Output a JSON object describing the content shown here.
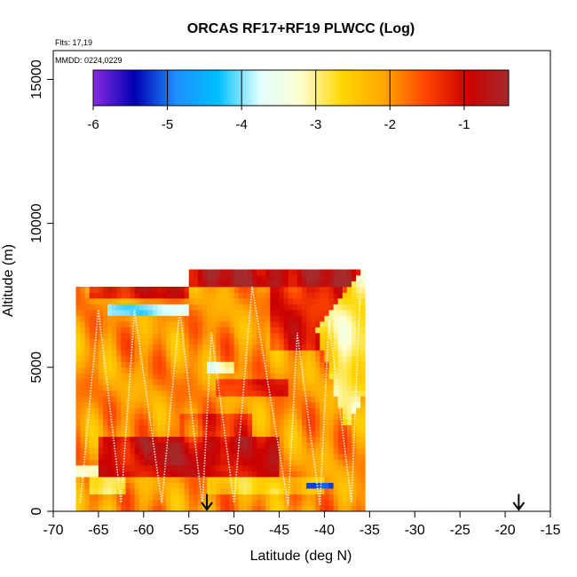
{
  "chart_data": {
    "type": "heatmap",
    "title": "ORCAS RF17+RF19 PLWCC (Log)",
    "annotations": [
      "Flts: 17,19",
      "MMDD: 0224,0229"
    ],
    "xlabel": "Latitude (deg N)",
    "ylabel": "Altitude (m)",
    "xlim": [
      -70,
      -15
    ],
    "ylim": [
      0,
      16000
    ],
    "xticks": [
      "-70",
      "-65",
      "-60",
      "-55",
      "-50",
      "-45",
      "-40",
      "-35",
      "-30",
      "-25",
      "-20",
      "-15"
    ],
    "yticks": [
      "0",
      "5000",
      "10000",
      "15000"
    ],
    "colorbar": {
      "range": [
        -6,
        -0.4
      ],
      "ticks": [
        "-6",
        "-5",
        "-4",
        "-3",
        "-2",
        "-1"
      ],
      "colors": [
        "#8a2be2",
        "#0000b0",
        "#1e90ff",
        "#00bfff",
        "#e0ffff",
        "#ffffd0",
        "#ffd700",
        "#ffa500",
        "#ff4500",
        "#cc0000",
        "#a52a2a"
      ]
    },
    "grid": false,
    "cell": {
      "dlat": 0.5,
      "dalt": 200
    },
    "layers": [
      {
        "lat": [
          -67.5,
          -35.5
        ],
        "alt": [
          0,
          7800
        ],
        "value": -2.0
      },
      {
        "lat": [
          -53.0,
          -40.0
        ],
        "alt": [
          600,
          1200
        ],
        "value": -2.5
      },
      {
        "lat": [
          -65.0,
          -45.0
        ],
        "alt": [
          1200,
          2600
        ],
        "value": -1.0
      },
      {
        "lat": [
          -60.0,
          -50.0
        ],
        "alt": [
          1600,
          2400
        ],
        "value": -0.8
      },
      {
        "lat": [
          -56.0,
          -48.0
        ],
        "alt": [
          2600,
          3400
        ],
        "value": -1.5
      },
      {
        "lat": [
          -68.0,
          -65.0
        ],
        "alt": [
          1200,
          1600
        ],
        "value": -3.4
      },
      {
        "lat": [
          -66.0,
          -62.0
        ],
        "alt": [
          600,
          1200
        ],
        "value": -3.0
      },
      {
        "lat": [
          -53.0,
          -50.0
        ],
        "alt": [
          4800,
          5200
        ],
        "value": -3.3
      },
      {
        "lat": [
          -64.0,
          -55.0
        ],
        "alt": [
          6800,
          7200
        ],
        "value": -3.9
      },
      {
        "lat": [
          -42.0,
          -39.0
        ],
        "alt": [
          800,
          1000
        ],
        "value": -5.2
      },
      {
        "lat": [
          -52.0,
          -44.0
        ],
        "alt": [
          4000,
          4600
        ],
        "value": -1.3
      },
      {
        "lat": [
          -55.0,
          -35.5
        ],
        "alt": [
          7800,
          8400
        ],
        "value": -0.7
      },
      {
        "lat": [
          -46.0,
          -38.0
        ],
        "alt": [
          5600,
          7800
        ],
        "value": -1.2
      },
      {
        "lat": [
          -66.0,
          -55.0
        ],
        "alt": [
          7400,
          7800
        ],
        "value": -1.1
      }
    ],
    "wedge": {
      "value": -2.9,
      "points": [
        [
          -41.0,
          6400
        ],
        [
          -35.5,
          8400
        ],
        [
          -35.5,
          4200
        ],
        [
          -37.5,
          2800
        ]
      ]
    },
    "flight_track": [
      [
        -67.0,
        300
      ],
      [
        -65.0,
        7000
      ],
      [
        -62.5,
        300
      ],
      [
        -61.0,
        7000
      ],
      [
        -58.0,
        300
      ],
      [
        -56.0,
        7000
      ],
      [
        -53.5,
        200
      ],
      [
        -52.5,
        6200
      ],
      [
        -50.0,
        300
      ],
      [
        -48.0,
        7800
      ],
      [
        -44.0,
        200
      ],
      [
        -43.0,
        6200
      ],
      [
        -40.5,
        200
      ],
      [
        -39.5,
        6600
      ],
      [
        -37.0,
        300
      ],
      [
        -36.0,
        8000
      ]
    ],
    "arrows": [
      {
        "x": -53.0,
        "y_top": 600,
        "y_bottom": 0
      },
      {
        "x": -18.5,
        "y_top": 600,
        "y_bottom": 0
      }
    ]
  }
}
